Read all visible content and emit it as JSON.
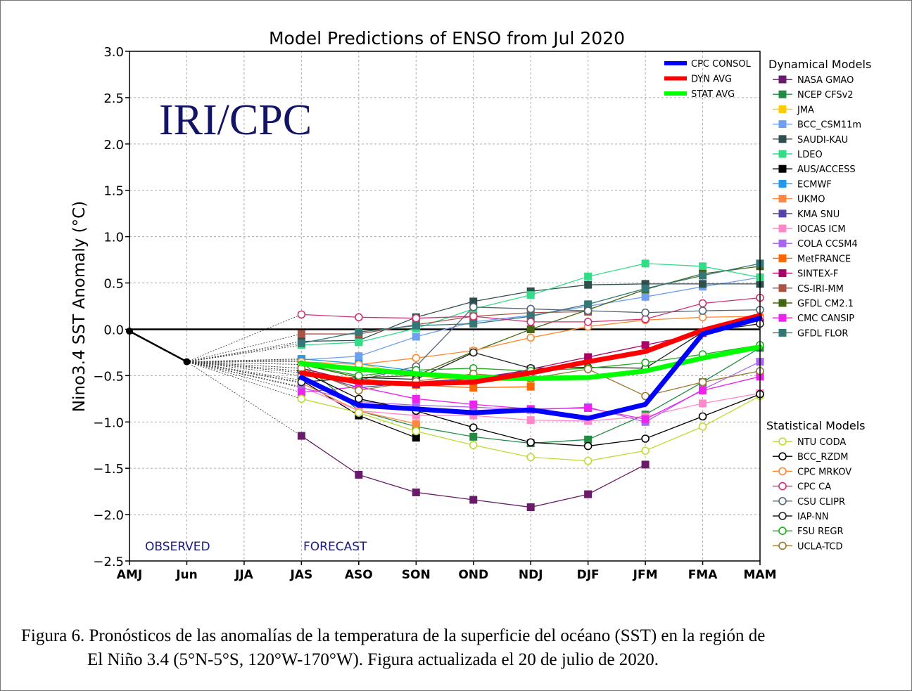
{
  "chart_data": {
    "type": "line",
    "title": "Model Predictions of ENSO from Jul 2020",
    "ylabel": "Nino3.4 SST Anomaly (°C)",
    "xlabel": "",
    "ylim": [
      -2.5,
      3.0
    ],
    "yticks": [
      "3.0",
      "2.5",
      "2.0",
      "1.5",
      "1.0",
      "0.5",
      "0.0",
      "−0.5",
      "−1.0",
      "−1.5",
      "−2.0",
      "−2.5"
    ],
    "ytick_values": [
      3.0,
      2.5,
      2.0,
      1.5,
      1.0,
      0.5,
      0.0,
      -0.5,
      -1.0,
      -1.5,
      -2.0,
      -2.5
    ],
    "categories": [
      "AMJ",
      "Jun",
      "JJA",
      "JAS",
      "ASO",
      "SON",
      "OND",
      "NDJ",
      "DJF",
      "JFM",
      "FMA",
      "MAM"
    ],
    "grid": true,
    "watermark": "IRI/CPC",
    "observed_label": "OBSERVED",
    "forecast_label": "FORECAST",
    "observed": {
      "x": [
        "AMJ",
        "Jun"
      ],
      "values": [
        -0.02,
        -0.35
      ],
      "color": "#000000"
    },
    "zero_line_color": "#000000",
    "legend_consensus": [
      {
        "name": "CPC CONSOL",
        "color": "#0000ff"
      },
      {
        "name": "DYN AVG",
        "color": "#ff0000"
      },
      {
        "name": "STAT AVG",
        "color": "#00ff00"
      }
    ],
    "dynamical_title": "Dynamical Models",
    "statistical_title": "Statistical Models",
    "consensus": [
      {
        "name": "CPC CONSOL",
        "color": "#0000ff",
        "values": [
          -0.52,
          -0.82,
          -0.86,
          -0.9,
          -0.87,
          -0.96,
          -0.81,
          -0.05,
          0.12
        ]
      },
      {
        "name": "DYN AVG",
        "color": "#ff0000",
        "values": [
          -0.47,
          -0.57,
          -0.59,
          -0.57,
          -0.47,
          -0.35,
          -0.24,
          -0.01,
          0.15
        ]
      },
      {
        "name": "STAT AVG",
        "color": "#00ff00",
        "values": [
          -0.37,
          -0.43,
          -0.48,
          -0.52,
          -0.53,
          -0.52,
          -0.45,
          -0.31,
          -0.19
        ]
      }
    ],
    "dynamical": [
      {
        "name": "NASA GMAO",
        "color": "#6a1a6a",
        "values": [
          -1.15,
          -1.57,
          -1.76,
          -1.84,
          -1.92,
          -1.78,
          -1.46,
          null,
          null
        ]
      },
      {
        "name": "NCEP CFSv2",
        "color": "#228b44",
        "values": [
          -0.35,
          -0.88,
          -1.05,
          -1.16,
          -1.23,
          -1.19,
          -0.92,
          -0.57,
          -0.2
        ]
      },
      {
        "name": "JMA",
        "color": "#ffcc00",
        "values": [
          -0.32,
          -0.37,
          -0.5,
          -0.56,
          -0.55,
          null,
          null,
          null,
          null
        ]
      },
      {
        "name": "BCC_CSM11m",
        "color": "#6fa0f0",
        "values": [
          -0.33,
          -0.29,
          -0.08,
          0.08,
          0.15,
          0.25,
          0.35,
          0.46,
          0.56
        ]
      },
      {
        "name": "SAUDI-KAU",
        "color": "#2f4f4f",
        "values": [
          -0.13,
          -0.12,
          0.13,
          0.3,
          0.41,
          0.48,
          0.49,
          0.49,
          0.49
        ]
      },
      {
        "name": "LDEO",
        "color": "#33dd88",
        "values": [
          -0.17,
          -0.14,
          0.01,
          0.22,
          0.37,
          0.57,
          0.71,
          0.68,
          0.56
        ]
      },
      {
        "name": "AUS/ACCESS",
        "color": "#000000",
        "values": [
          -0.55,
          -0.93,
          -1.17,
          null,
          null,
          null,
          null,
          null,
          null
        ]
      },
      {
        "name": "ECMWF",
        "color": "#2299ee",
        "values": [
          -0.32,
          -0.37,
          -0.45,
          -0.55,
          -0.52,
          null,
          null,
          null,
          null
        ]
      },
      {
        "name": "UKMO",
        "color": "#ff8844",
        "values": [
          -0.58,
          -0.88,
          -1.02,
          null,
          null,
          null,
          null,
          null,
          null
        ]
      },
      {
        "name": "KMA SNU",
        "color": "#5544aa",
        "values": [
          -0.45,
          -0.63,
          -0.57,
          -0.53,
          -0.44,
          null,
          null,
          null,
          null
        ]
      },
      {
        "name": "IOCAS ICM",
        "color": "#ff88cc",
        "values": [
          -0.62,
          -0.88,
          -0.93,
          -0.93,
          -0.98,
          -0.99,
          -0.94,
          -0.8,
          -0.69
        ]
      },
      {
        "name": "COLA CCSM4",
        "color": "#aa66ee",
        "values": [
          -0.63,
          -0.78,
          -0.82,
          -0.84,
          -0.87,
          -0.84,
          -1.0,
          -0.65,
          -0.35
        ]
      },
      {
        "name": "MetFRANCE",
        "color": "#ff6600",
        "values": [
          -0.47,
          -0.53,
          -0.6,
          -0.63,
          -0.62,
          null,
          null,
          null,
          null
        ]
      },
      {
        "name": "SINTEX-F",
        "color": "#aa0066",
        "values": [
          -0.42,
          -0.57,
          -0.59,
          -0.55,
          -0.43,
          -0.3,
          -0.17,
          -0.04,
          0.12
        ]
      },
      {
        "name": "CS-IRI-MM",
        "color": "#aa5544",
        "values": [
          -0.05,
          -0.05,
          0.05,
          0.14,
          0.18,
          0.19,
          null,
          null,
          null
        ]
      },
      {
        "name": "GFDL CM2.1",
        "color": "#446611",
        "values": [
          -0.38,
          -0.52,
          -0.5,
          -0.24,
          0.0,
          0.21,
          0.43,
          0.6,
          0.68
        ]
      },
      {
        "name": "CMC CANSIP",
        "color": "#ee22ee",
        "values": [
          -0.68,
          -0.62,
          -0.75,
          -0.81,
          -0.86,
          -0.85,
          -0.97,
          -0.66,
          -0.51
        ]
      },
      {
        "name": "GFDL FLOR",
        "color": "#337777",
        "values": [
          -0.15,
          -0.03,
          0.04,
          0.06,
          0.14,
          0.27,
          0.44,
          0.58,
          0.71
        ]
      }
    ],
    "statistical": [
      {
        "name": "NTU CODA",
        "color": "#bbdd33",
        "values": [
          -0.75,
          -0.9,
          -1.1,
          -1.25,
          -1.38,
          -1.42,
          -1.31,
          -1.05,
          -0.72
        ]
      },
      {
        "name": "BCC_RZDM",
        "color": "#000000",
        "values": [
          -0.45,
          -0.75,
          -0.88,
          -1.06,
          -1.22,
          -1.26,
          -1.18,
          -0.94,
          -0.7
        ]
      },
      {
        "name": "CPC MRKOV",
        "color": "#ff8833",
        "values": [
          -0.35,
          -0.38,
          -0.31,
          -0.23,
          -0.09,
          0.03,
          0.1,
          0.13,
          0.14
        ]
      },
      {
        "name": "CPC CA",
        "color": "#cc3377",
        "values": [
          0.16,
          0.13,
          0.12,
          0.14,
          0.08,
          0.08,
          0.11,
          0.28,
          0.34
        ]
      },
      {
        "name": "CSU CLIPR",
        "color": "#556677",
        "values": [
          -0.5,
          -0.55,
          -0.4,
          0.24,
          0.22,
          0.2,
          0.18,
          0.2,
          0.21
        ]
      },
      {
        "name": "IAP-NN",
        "color": "#222222",
        "values": [
          -0.57,
          -0.52,
          -0.54,
          -0.25,
          -0.42,
          -0.41,
          -0.42,
          -0.03,
          0.06
        ]
      },
      {
        "name": "FSU REGR",
        "color": "#22aa22",
        "values": [
          -0.38,
          -0.5,
          -0.44,
          -0.42,
          -0.45,
          -0.42,
          -0.36,
          -0.27,
          -0.17
        ]
      },
      {
        "name": "UCLA-TCD",
        "color": "#997733",
        "values": [
          -0.42,
          -0.66,
          -0.56,
          -0.48,
          -0.53,
          -0.43,
          -0.72,
          -0.57,
          -0.45
        ]
      }
    ]
  },
  "caption": {
    "line1": "Figura 6. Pronósticos de las anomalías de la temperatura de la superficie del océano (SST) en la región de",
    "line2": "El Niño 3.4 (5°N-5°S, 120°W-170°W). Figura actualizada el 20 de julio de 2020."
  }
}
